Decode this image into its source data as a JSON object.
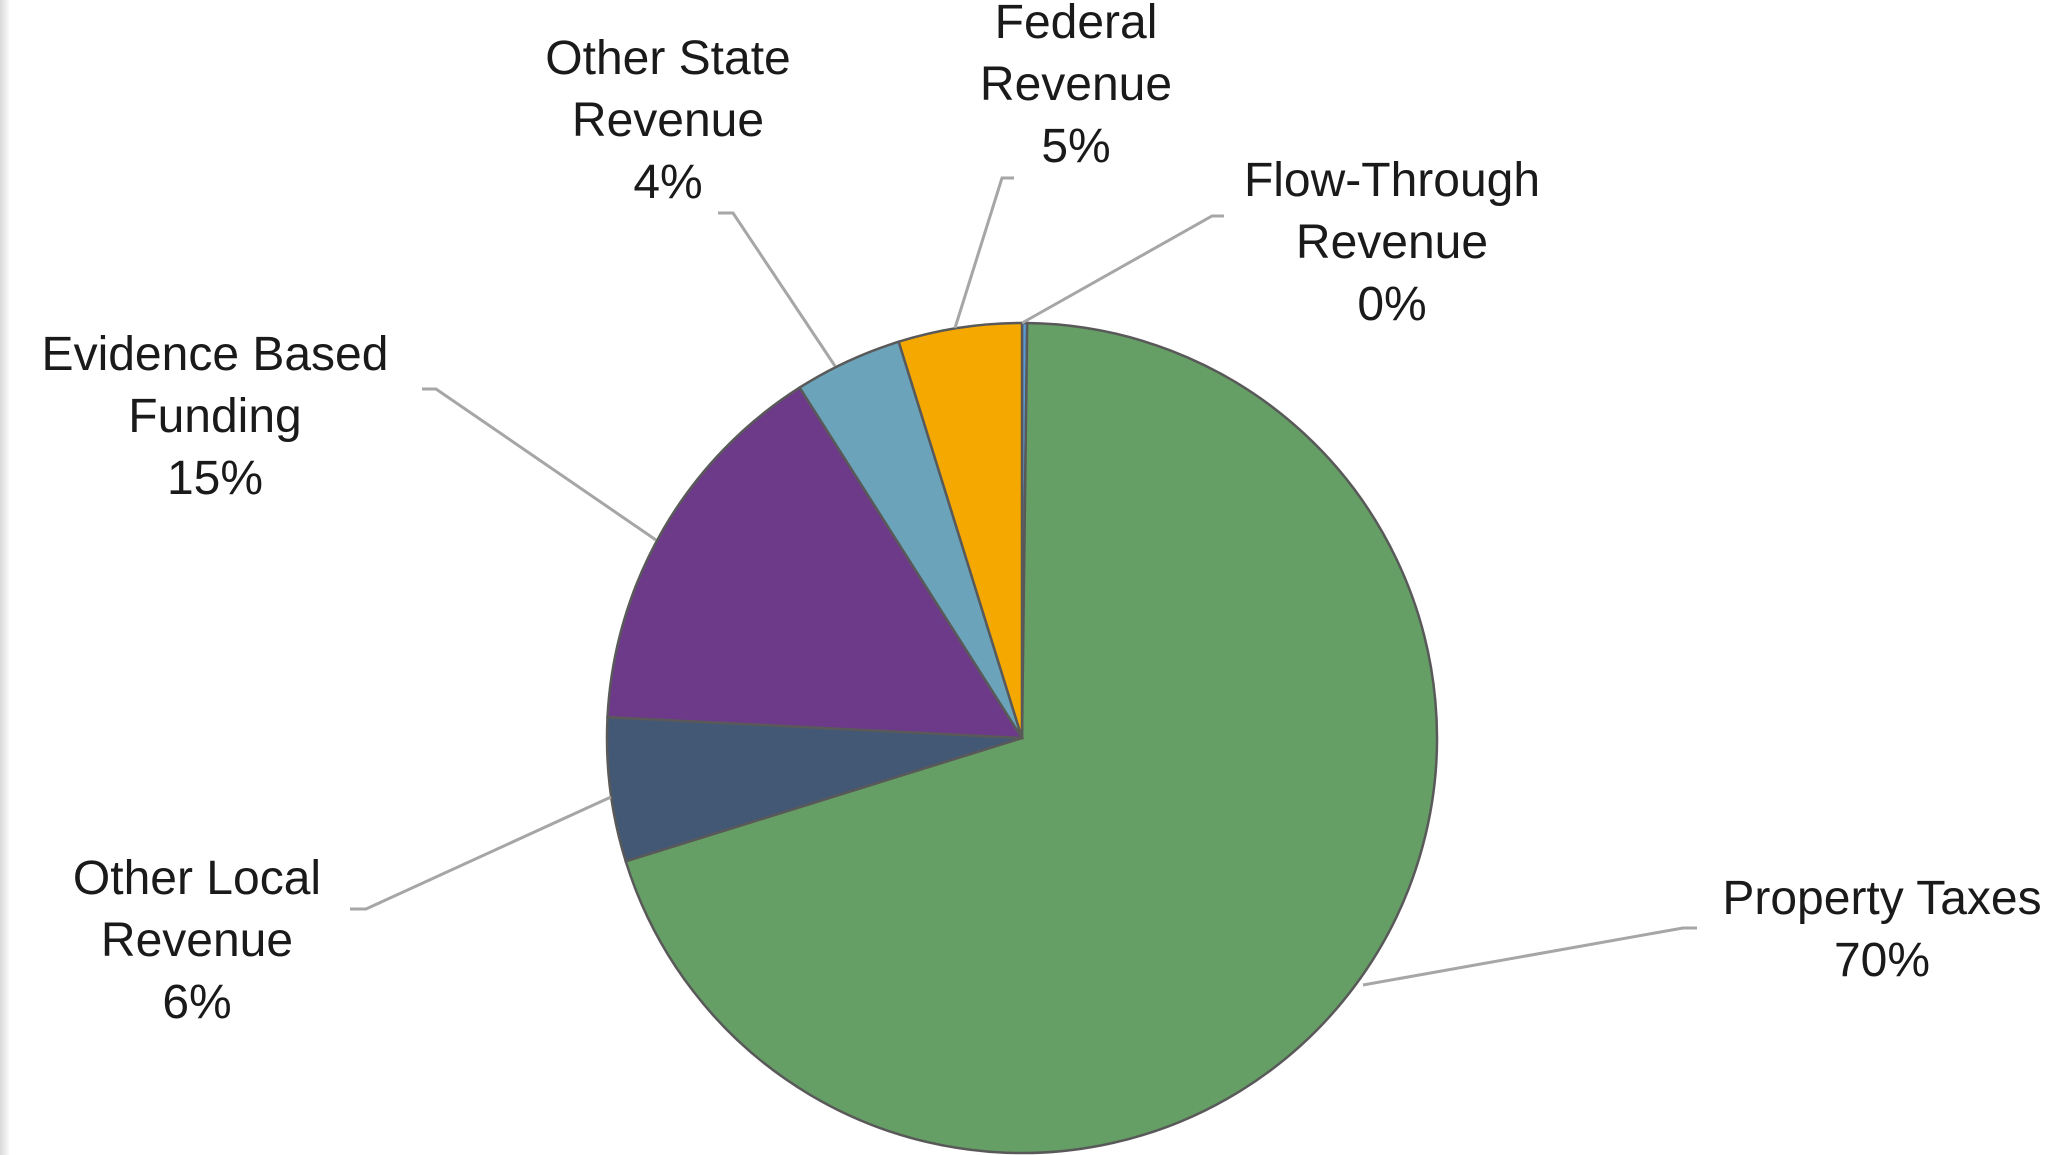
{
  "chart_data": {
    "type": "pie",
    "title": "",
    "unit": "%",
    "start_angle_deg": 0,
    "direction": "clockwise",
    "slices": [
      {
        "label_lines": [
          "Flow-Through",
          "Revenue"
        ],
        "pct_label": "0%",
        "value": 0.2,
        "color": "#5B9BD5"
      },
      {
        "label_lines": [
          "Property Taxes"
        ],
        "pct_label": "70%",
        "value": 70.0,
        "color": "#659F66"
      },
      {
        "label_lines": [
          "Other Local",
          "Revenue"
        ],
        "pct_label": "6%",
        "value": 5.6,
        "color": "#435875"
      },
      {
        "label_lines": [
          "Evidence Based",
          "Funding"
        ],
        "pct_label": "15%",
        "value": 15.2,
        "color": "#6D3A8A"
      },
      {
        "label_lines": [
          "Other State",
          "Revenue"
        ],
        "pct_label": "4%",
        "value": 4.2,
        "color": "#6BA3BA"
      },
      {
        "label_lines": [
          "Federal",
          "Revenue"
        ],
        "pct_label": "5%",
        "value": 4.8,
        "color": "#F5A800"
      }
    ]
  }
}
